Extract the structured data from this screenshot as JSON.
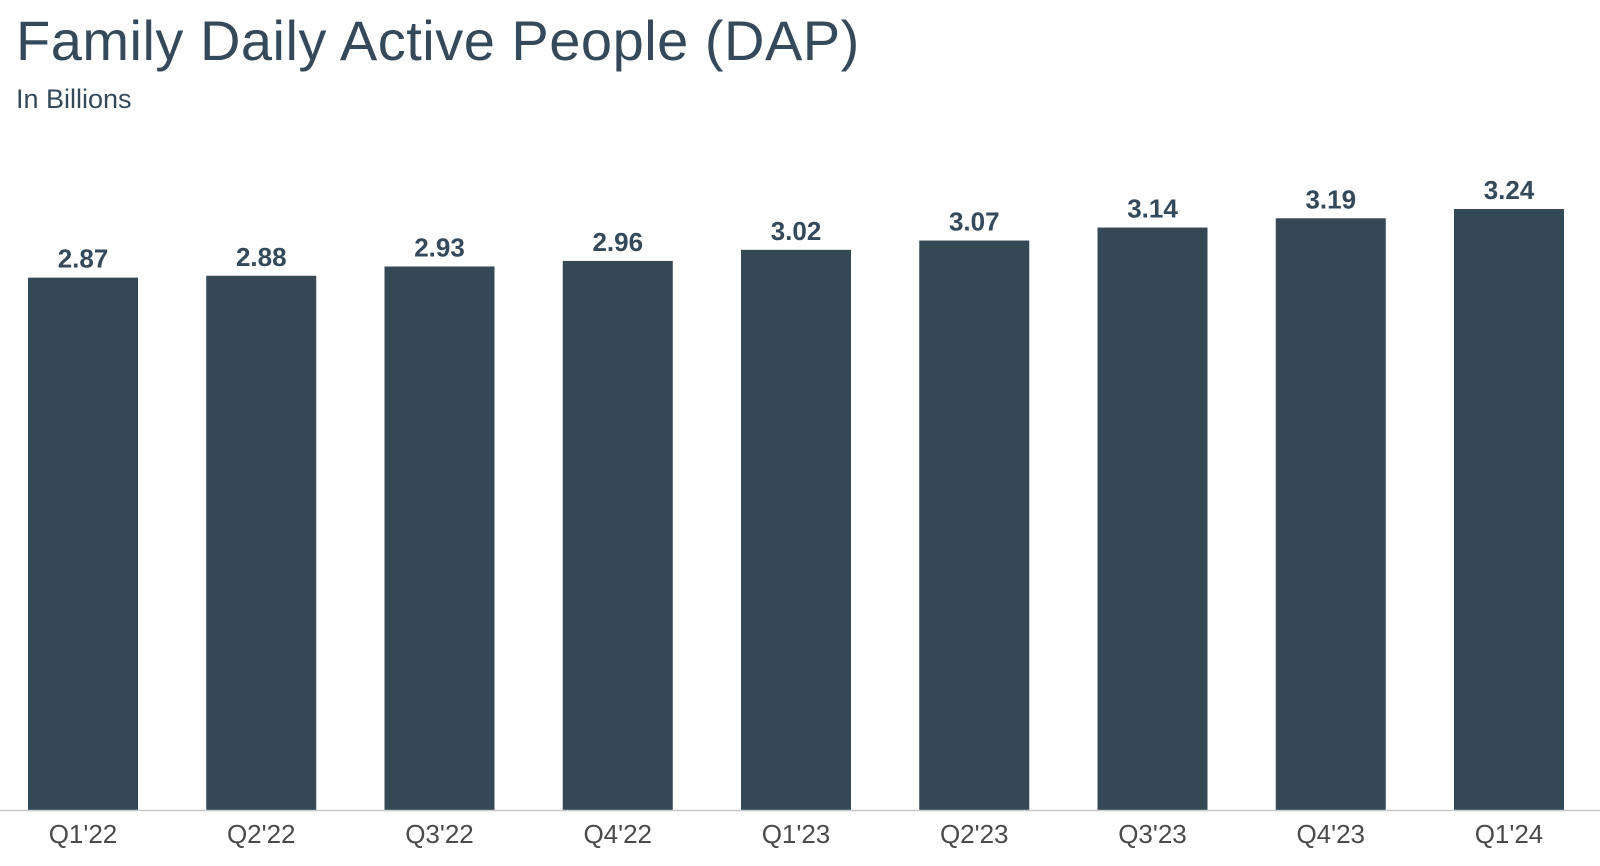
{
  "chart_data": {
    "type": "bar",
    "title": "Family Daily Active People (DAP)",
    "subtitle": "In Billions",
    "categories": [
      "Q1'22",
      "Q2'22",
      "Q3'22",
      "Q4'22",
      "Q1'23",
      "Q2'23",
      "Q3'23",
      "Q4'23",
      "Q1'24"
    ],
    "values": [
      2.87,
      2.88,
      2.93,
      2.96,
      3.02,
      3.07,
      3.14,
      3.19,
      3.24
    ],
    "value_labels": [
      "2.87",
      "2.88",
      "2.93",
      "2.96",
      "3.02",
      "3.07",
      "3.14",
      "3.19",
      "3.24"
    ],
    "xlabel": "",
    "ylabel": "",
    "ylim": [
      0,
      3.3
    ],
    "grid": false,
    "legend": "none",
    "colors": {
      "bar": "#354855",
      "text": "#34495a",
      "tick_text": "#4a4a4a",
      "axis": "#c8c8c8"
    }
  }
}
